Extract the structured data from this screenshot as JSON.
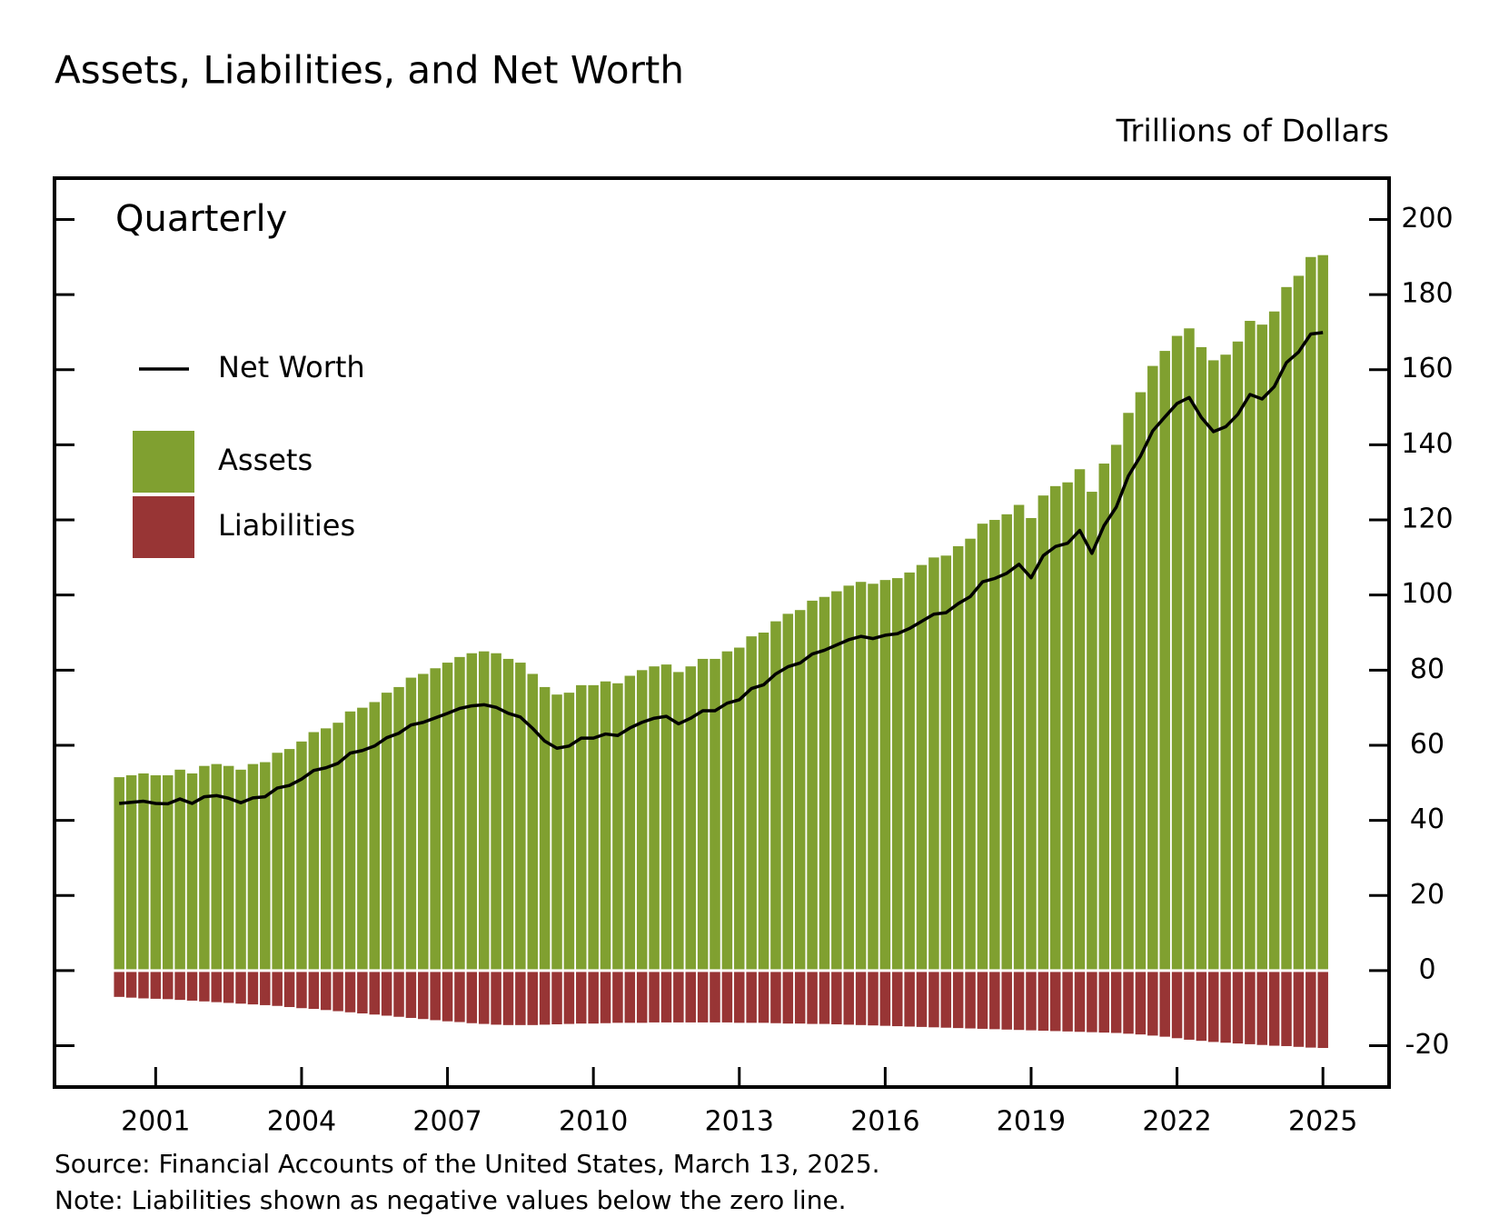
{
  "chart_data": {
    "type": "bar",
    "title": "Assets, Liabilities, and Net Worth",
    "y_label": "Trillions of Dollars",
    "annotation": "Quarterly",
    "source": "Source: Financial Accounts of the United States, March 13, 2025.",
    "note": "Note: Liabilities shown as negative values below the zero line.",
    "x": [
      2000.25,
      2000.5,
      2000.75,
      2001.0,
      2001.25,
      2001.5,
      2001.75,
      2002.0,
      2002.25,
      2002.5,
      2002.75,
      2003.0,
      2003.25,
      2003.5,
      2003.75,
      2004.0,
      2004.25,
      2004.5,
      2004.75,
      2005.0,
      2005.25,
      2005.5,
      2005.75,
      2006.0,
      2006.25,
      2006.5,
      2006.75,
      2007.0,
      2007.25,
      2007.5,
      2007.75,
      2008.0,
      2008.25,
      2008.5,
      2008.75,
      2009.0,
      2009.25,
      2009.5,
      2009.75,
      2010.0,
      2010.25,
      2010.5,
      2010.75,
      2011.0,
      2011.25,
      2011.5,
      2011.75,
      2012.0,
      2012.25,
      2012.5,
      2012.75,
      2013.0,
      2013.25,
      2013.5,
      2013.75,
      2014.0,
      2014.25,
      2014.5,
      2014.75,
      2015.0,
      2015.25,
      2015.5,
      2015.75,
      2016.0,
      2016.25,
      2016.5,
      2016.75,
      2017.0,
      2017.25,
      2017.5,
      2017.75,
      2018.0,
      2018.25,
      2018.5,
      2018.75,
      2019.0,
      2019.25,
      2019.5,
      2019.75,
      2020.0,
      2020.25,
      2020.5,
      2020.75,
      2021.0,
      2021.25,
      2021.5,
      2021.75,
      2022.0,
      2022.25,
      2022.5,
      2022.75,
      2023.0,
      2023.25,
      2023.5,
      2023.75,
      2024.0,
      2024.25,
      2024.5,
      2024.75,
      2025.0
    ],
    "series": [
      {
        "name": "Net Worth",
        "type": "line",
        "color": "#000000",
        "values": [
          44.5,
          44.8,
          45.1,
          44.5,
          44.4,
          45.7,
          44.5,
          46.3,
          46.6,
          45.9,
          44.7,
          46.0,
          46.3,
          48.6,
          49.3,
          51.0,
          53.3,
          54.0,
          55.2,
          57.9,
          58.6,
          59.8,
          62.0,
          63.2,
          65.4,
          66.1,
          67.3,
          68.5,
          69.8,
          70.5,
          70.8,
          70.1,
          68.5,
          67.5,
          64.5,
          61.1,
          59.2,
          59.8,
          61.9,
          61.9,
          63.0,
          62.6,
          64.6,
          66.1,
          67.2,
          67.7,
          65.7,
          67.2,
          69.2,
          69.2,
          71.2,
          72.1,
          75.1,
          76.1,
          79.0,
          80.9,
          81.9,
          84.3,
          85.3,
          86.7,
          88.1,
          89.0,
          88.4,
          89.3,
          89.7,
          91.1,
          93.0,
          94.9,
          95.3,
          97.7,
          99.6,
          103.5,
          104.4,
          105.8,
          108.2,
          104.6,
          110.5,
          112.9,
          113.8,
          117.2,
          111.1,
          118.5,
          123.4,
          131.7,
          137.0,
          143.7,
          147.4,
          151.0,
          152.6,
          147.3,
          143.5,
          144.8,
          148.1,
          153.4,
          152.2,
          155.5,
          161.9,
          164.7,
          169.5,
          169.9
        ]
      },
      {
        "name": "Assets",
        "type": "bar",
        "color": "#80a030",
        "values": [
          51.5,
          52,
          52.5,
          52,
          52,
          53.5,
          52.5,
          54.5,
          55,
          54.5,
          53.5,
          55,
          55.5,
          58,
          59,
          61,
          63.5,
          64.5,
          66,
          69,
          70,
          71.5,
          74,
          75.5,
          78,
          79,
          80.5,
          82,
          83.5,
          84.5,
          85,
          84.5,
          83,
          82,
          79,
          75.5,
          73.5,
          74,
          76,
          76,
          77,
          76.5,
          78.5,
          80,
          81,
          81.5,
          79.5,
          81,
          83,
          83,
          85,
          86,
          89,
          90,
          93,
          95,
          96,
          98.5,
          99.5,
          101,
          102.5,
          103.5,
          103,
          104,
          104.5,
          106,
          108,
          110,
          110.5,
          113,
          115,
          119,
          120,
          121.5,
          124,
          120.5,
          126.5,
          129,
          130,
          133.5,
          127.5,
          135,
          140,
          148.5,
          154,
          161,
          165,
          169,
          171,
          166,
          162.5,
          164,
          167.5,
          173,
          172,
          175.5,
          182,
          185,
          190,
          190.5
        ]
      },
      {
        "name": "Liabilities",
        "type": "bar",
        "color": "#983535",
        "values": [
          -7,
          -7.2,
          -7.4,
          -7.5,
          -7.6,
          -7.8,
          -8,
          -8.2,
          -8.4,
          -8.6,
          -8.8,
          -9,
          -9.2,
          -9.4,
          -9.7,
          -10,
          -10.2,
          -10.5,
          -10.8,
          -11.1,
          -11.4,
          -11.7,
          -12,
          -12.3,
          -12.6,
          -12.9,
          -13.2,
          -13.5,
          -13.7,
          -14,
          -14.2,
          -14.4,
          -14.5,
          -14.5,
          -14.5,
          -14.4,
          -14.3,
          -14.2,
          -14.1,
          -14.1,
          -14,
          -13.9,
          -13.9,
          -13.9,
          -13.8,
          -13.8,
          -13.8,
          -13.8,
          -13.8,
          -13.8,
          -13.8,
          -13.9,
          -13.9,
          -13.9,
          -14,
          -14.1,
          -14.1,
          -14.2,
          -14.2,
          -14.3,
          -14.4,
          -14.5,
          -14.6,
          -14.7,
          -14.8,
          -14.9,
          -15,
          -15.1,
          -15.2,
          -15.3,
          -15.4,
          -15.5,
          -15.6,
          -15.7,
          -15.8,
          -15.9,
          -16,
          -16.1,
          -16.2,
          -16.3,
          -16.4,
          -16.5,
          -16.6,
          -16.8,
          -17,
          -17.3,
          -17.6,
          -18,
          -18.4,
          -18.7,
          -19,
          -19.2,
          -19.4,
          -19.6,
          -19.8,
          -20,
          -20.1,
          -20.3,
          -20.5,
          -20.6
        ]
      }
    ],
    "xlim": [
      1998.92,
      2026.36
    ],
    "xticks": [
      2001,
      2004,
      2007,
      2010,
      2013,
      2016,
      2019,
      2022,
      2025
    ],
    "ylim": [
      -31,
      211
    ],
    "yticks": [
      -20,
      0,
      20,
      40,
      60,
      80,
      100,
      120,
      140,
      160,
      180,
      200
    ],
    "legend": "upper left",
    "grid": false
  }
}
